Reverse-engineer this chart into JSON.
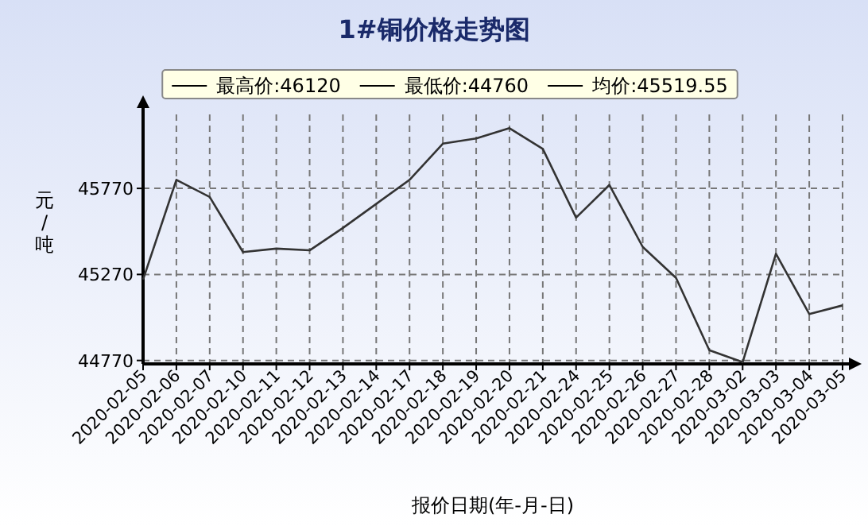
{
  "chart_data": {
    "type": "line",
    "title": "1#铜价格走势图",
    "xlabel": "报价日期(年-月-日)",
    "ylabel": "元/吨",
    "categories": [
      "2020-02-05",
      "2020-02-06",
      "2020-02-07",
      "2020-02-10",
      "2020-02-11",
      "2020-02-12",
      "2020-02-13",
      "2020-02-14",
      "2020-02-17",
      "2020-02-18",
      "2020-02-19",
      "2020-02-20",
      "2020-02-21",
      "2020-02-24",
      "2020-02-25",
      "2020-02-26",
      "2020-02-27",
      "2020-02-28",
      "2020-03-02",
      "2020-03-03",
      "2020-03-04",
      "2020-03-05"
    ],
    "series": [
      {
        "color": "#333333",
        "values": [
          45240,
          45820,
          45720,
          45400,
          45420,
          45410,
          45540,
          45680,
          45820,
          46030,
          46060,
          46120,
          46000,
          45600,
          45790,
          45430,
          45250,
          44830,
          44760,
          45390,
          45040,
          45090
        ]
      }
    ],
    "ylim": [
      44750,
      46200
    ],
    "yticks": [
      44770,
      45270,
      45770
    ],
    "grid": true,
    "annotations": [
      "最高价:46120",
      "最低价:44760",
      "均价:45519.55"
    ]
  }
}
